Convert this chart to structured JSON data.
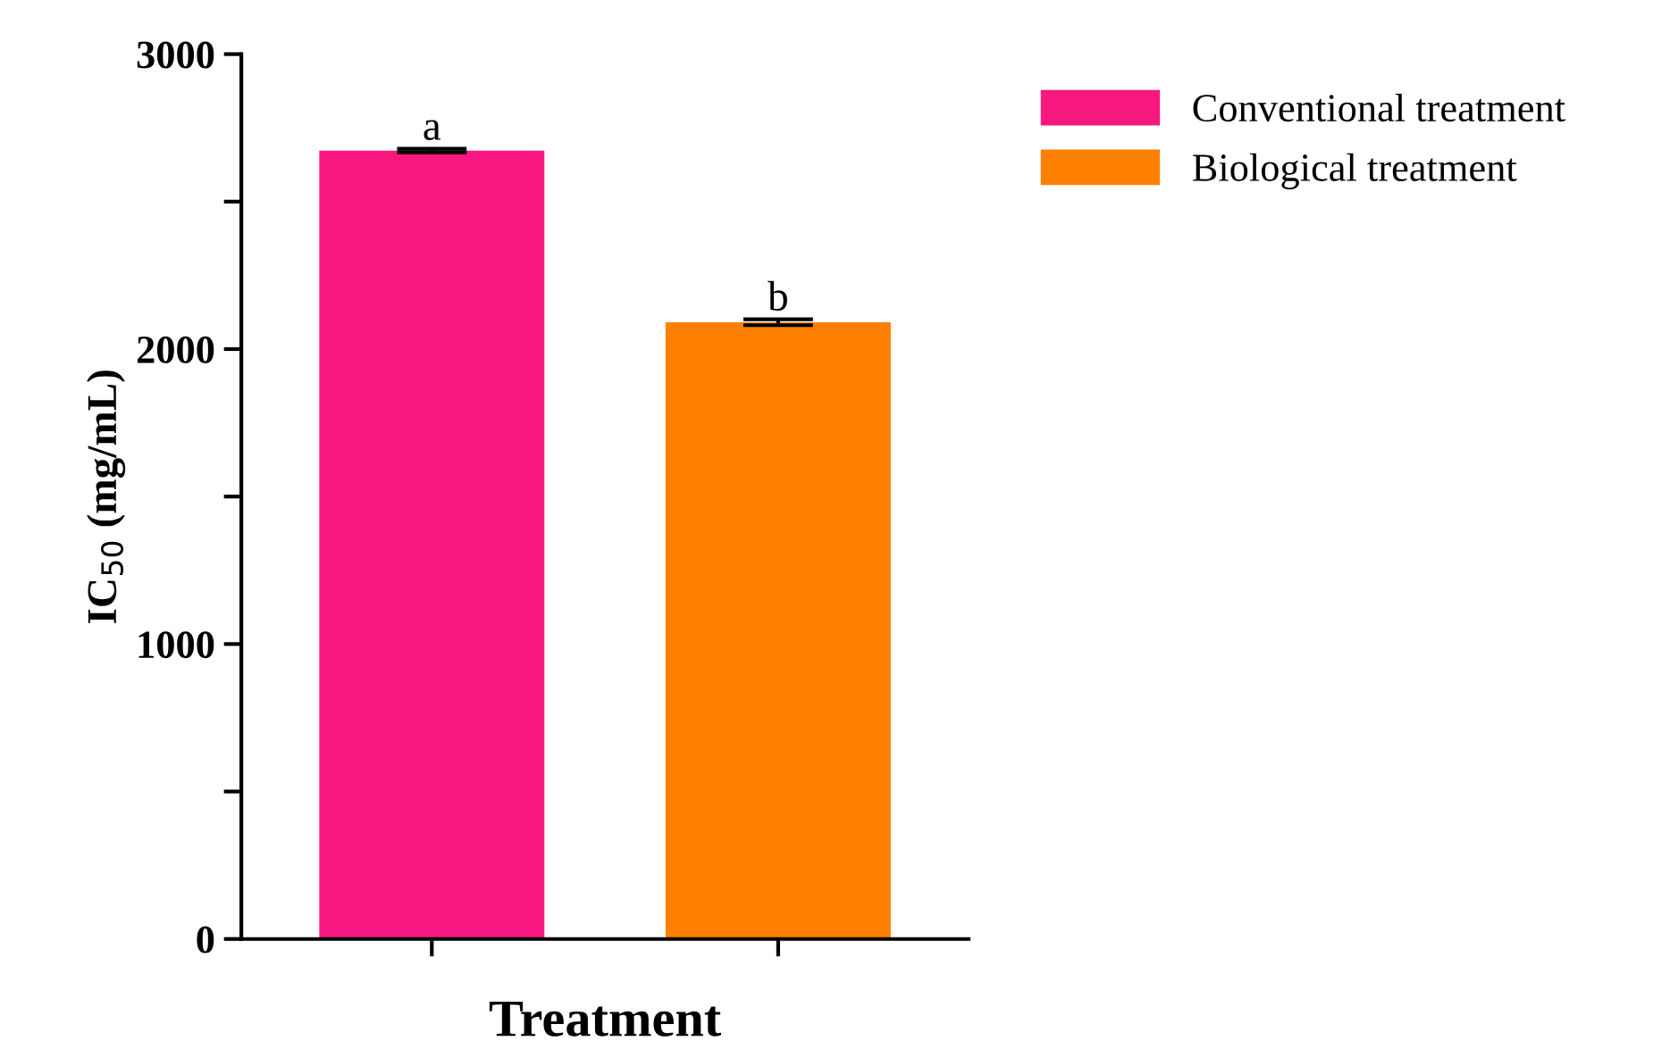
{
  "chart_data": {
    "type": "bar",
    "xlabel": "Treatment",
    "ylabel": "IC$_{50}$ (mg/mL)",
    "categories": [
      null,
      null
    ],
    "series": [
      {
        "name": "Conventional treatment",
        "color": "#f7187f",
        "values": [
          2673,
          null
        ],
        "errors": [
          6,
          null
        ]
      },
      {
        "name": "Biological treatment",
        "color": "#fe8000",
        "values": [
          null,
          2091
        ],
        "errors": [
          null,
          10
        ]
      }
    ],
    "annotations": [
      {
        "text": "a",
        "y": 2679
      },
      {
        "text": "b",
        "y": 2101
      }
    ],
    "ylim": [
      0,
      3000
    ],
    "yticks": [
      0,
      {
        "value": 500,
        "label": null
      },
      1000,
      {
        "value": 1500,
        "label": null
      },
      2000,
      {
        "value": 2500,
        "label": null
      },
      3000
    ],
    "grid": false,
    "legend": "top right"
  }
}
